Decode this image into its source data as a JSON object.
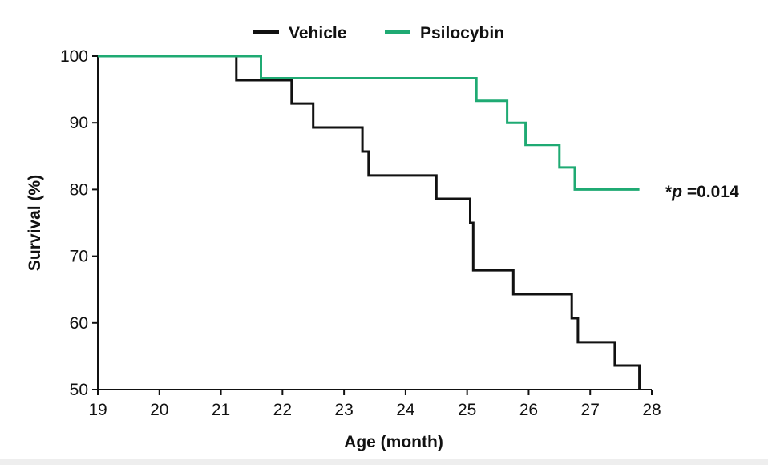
{
  "chart_data": {
    "type": "line",
    "step": true,
    "title": "",
    "xlabel": "Age (month)",
    "ylabel": "Survival (%)",
    "xlim": [
      19,
      28
    ],
    "ylim": [
      50,
      100
    ],
    "xticks": [
      "19",
      "20",
      "21",
      "22",
      "23",
      "24",
      "25",
      "26",
      "27",
      "28"
    ],
    "yticks": [
      "50",
      "60",
      "70",
      "80",
      "90",
      "100"
    ],
    "legend_position": "top-center",
    "grid": false,
    "series": [
      {
        "name": "Vehicle",
        "color": "#111111",
        "x": [
          19,
          21.25,
          22.15,
          22.5,
          23.3,
          23.4,
          24.5,
          25.05,
          25.1,
          25.75,
          26.7,
          26.8,
          27.4,
          27.8
        ],
        "y": [
          100,
          96.4,
          92.9,
          89.3,
          85.7,
          82.1,
          78.6,
          75.0,
          67.9,
          64.3,
          60.7,
          57.1,
          53.6,
          50.0
        ]
      },
      {
        "name": "Psilocybin",
        "color": "#1faa73",
        "x": [
          19,
          21.65,
          25.15,
          25.65,
          25.95,
          26.5,
          26.75,
          27.8
        ],
        "y": [
          100,
          96.7,
          93.3,
          90.0,
          86.7,
          83.3,
          80.0,
          80.0
        ]
      }
    ],
    "annotations": [
      {
        "prefix": "*",
        "italic": "p",
        "suffix": " =0.014"
      }
    ]
  }
}
